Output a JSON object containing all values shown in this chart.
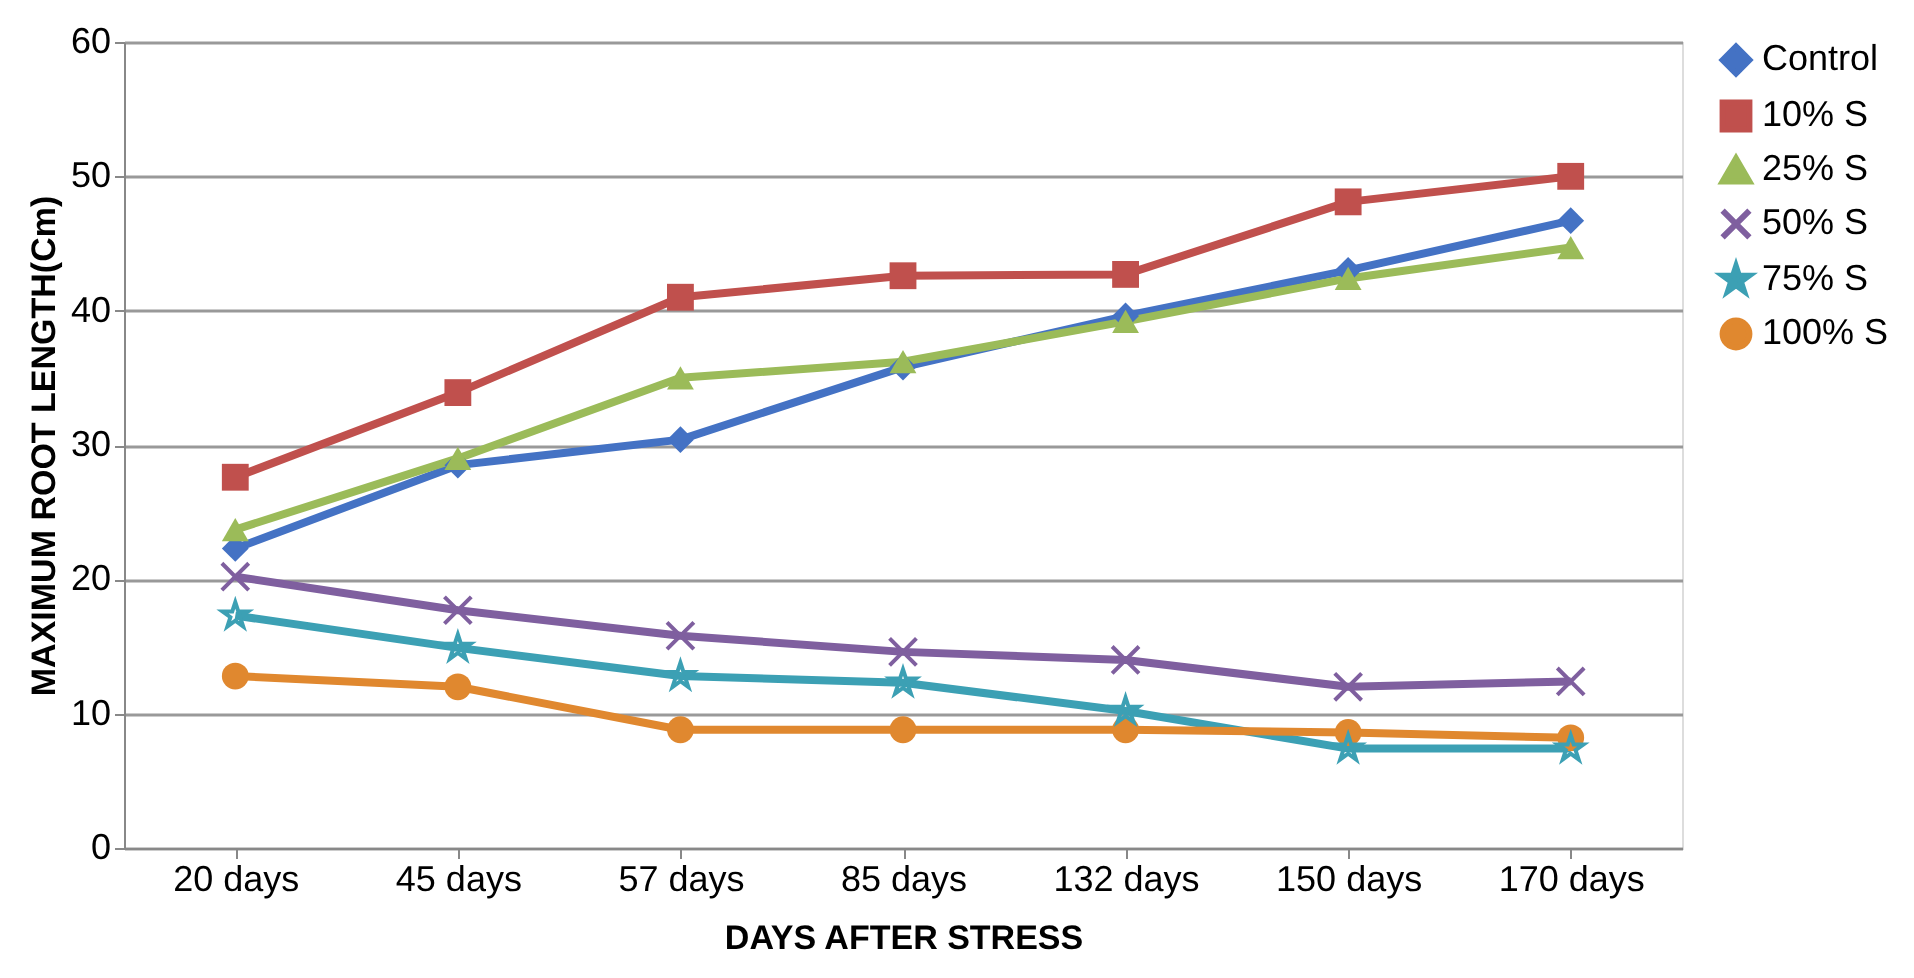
{
  "chart_data": {
    "type": "line",
    "xlabel": "DAYS AFTER STRESS",
    "ylabel": "MAXIMUM ROOT LENGTH(Cm)",
    "categories": [
      "20 days",
      "45 days",
      "57 days",
      "85 days",
      "132 days",
      "150 days",
      "170 days"
    ],
    "series": [
      {
        "name": "Control",
        "color": "#4472c4",
        "marker": "diamond",
        "values": [
          22.3,
          28.5,
          30.4,
          35.8,
          39.6,
          43,
          46.7
        ]
      },
      {
        "name": "10% S",
        "color": "#c0504d",
        "marker": "square",
        "values": [
          27.6,
          33.9,
          41,
          42.6,
          42.7,
          48.1,
          50
        ]
      },
      {
        "name": "25% S",
        "color": "#9bbb59",
        "marker": "triangle",
        "values": [
          23.7,
          29,
          35,
          36.2,
          39.2,
          42.4,
          44.7
        ]
      },
      {
        "name": "50% S",
        "color": "#7f5f9f",
        "marker": "cross",
        "values": [
          20.2,
          17.7,
          15.8,
          14.6,
          14,
          12,
          12.4
        ]
      },
      {
        "name": "75% S",
        "color": "#3ca0b4",
        "marker": "star",
        "values": [
          17.3,
          14.9,
          12.8,
          12.3,
          10.2,
          7.4,
          7.4
        ]
      },
      {
        "name": "100% S",
        "color": "#e0882f",
        "marker": "circle",
        "values": [
          12.8,
          12,
          8.8,
          8.8,
          8.8,
          8.6,
          8.2
        ]
      }
    ],
    "ylim": [
      0,
      60
    ],
    "yticks": [
      0,
      10,
      20,
      30,
      40,
      50,
      60
    ],
    "grid": "y",
    "legend": "right"
  }
}
